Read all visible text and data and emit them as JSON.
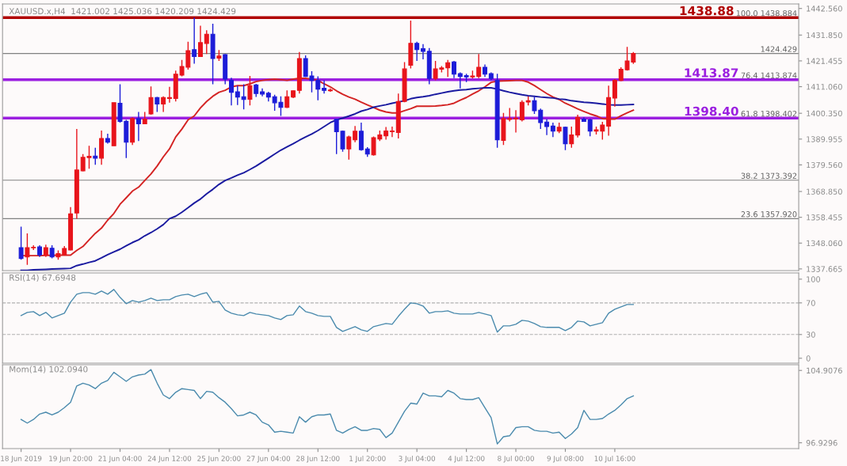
{
  "chart_data": [
    {
      "type": "candlestick",
      "title": "XAUUSD.x,H4  1421.002 1425.036 1420.209 1424.429",
      "categories": [
        null,
        null,
        null,
        null,
        null,
        null,
        null,
        null,
        null,
        null,
        null,
        null,
        null,
        null,
        null,
        null,
        null,
        null,
        null,
        null,
        null,
        null,
        null,
        null,
        null,
        null,
        null,
        null,
        null,
        null,
        null,
        null,
        null,
        null,
        null,
        null,
        null,
        null,
        null,
        null,
        null,
        null,
        null,
        null,
        null,
        null,
        null,
        null,
        null,
        null,
        null,
        null,
        null,
        null,
        null,
        null,
        null,
        null,
        null,
        null,
        null,
        null,
        null,
        null,
        null,
        null,
        null,
        null,
        null,
        null,
        null,
        null,
        null,
        null,
        null,
        null,
        null,
        null,
        null,
        null,
        null,
        null,
        null,
        null,
        null,
        null,
        null,
        null,
        null,
        null,
        null,
        null,
        null,
        null,
        null,
        null,
        null,
        null,
        null,
        null
      ],
      "ohlc": [
        [
          1346.2,
          1354.7,
          1341.4,
          1341.9
        ],
        [
          1342.5,
          1352.0,
          1339.3,
          1346.2
        ],
        [
          1346.2,
          1347.2,
          1345.3,
          1346.4
        ],
        [
          1346.5,
          1347.2,
          1342.5,
          1343.3
        ],
        [
          1343.2,
          1347.4,
          1342.5,
          1346.2
        ],
        [
          1346.0,
          1347.2,
          1341.9,
          1342.5
        ],
        [
          1342.5,
          1345.1,
          1341.4,
          1343.8
        ],
        [
          1343.5,
          1346.9,
          1343.2,
          1345.9
        ],
        [
          1345.3,
          1362.6,
          1345.1,
          1359.8
        ],
        [
          1360.2,
          1394.0,
          1357.9,
          1377.5
        ],
        [
          1377.2,
          1383.9,
          1377.0,
          1382.6
        ],
        [
          1382.5,
          1387.3,
          1378.0,
          1383.0
        ],
        [
          1383.1,
          1386.5,
          1379.6,
          1382.3
        ],
        [
          1382.3,
          1393.4,
          1379.6,
          1390.2
        ],
        [
          1390.2,
          1392.1,
          1388.1,
          1388.7
        ],
        [
          1387.3,
          1404.6,
          1387.3,
          1404.6
        ],
        [
          1404.4,
          1412.0,
          1396.6,
          1397.1
        ],
        [
          1397.1,
          1397.7,
          1382.3,
          1388.7
        ],
        [
          1388.7,
          1398.7,
          1387.6,
          1398.2
        ],
        [
          1398.2,
          1400.9,
          1389.2,
          1396.1
        ],
        [
          1396.1,
          1400.9,
          1396.1,
          1398.0
        ],
        [
          1400.1,
          1411.2,
          1399.8,
          1406.7
        ],
        [
          1406.7,
          1406.9,
          1400.9,
          1404.1
        ],
        [
          1404.1,
          1407.2,
          1400.9,
          1406.7
        ],
        [
          1406.3,
          1411.0,
          1404.6,
          1406.7
        ],
        [
          1406.3,
          1417.5,
          1405.1,
          1416.1
        ],
        [
          1415.7,
          1421.8,
          1415.2,
          1419.2
        ],
        [
          1418.9,
          1429.2,
          1417.9,
          1425.6
        ],
        [
          1426.0,
          1438.9,
          1420.3,
          1423.2
        ],
        [
          1423.2,
          1435.6,
          1423.2,
          1428.8
        ],
        [
          1428.5,
          1433.8,
          1424.2,
          1432.2
        ],
        [
          1432.2,
          1436.4,
          1412.0,
          1422.4
        ],
        [
          1422.6,
          1425.8,
          1421.4,
          1423.4
        ],
        [
          1424.0,
          1424.2,
          1412.0,
          1414.1
        ],
        [
          1413.6,
          1414.7,
          1403.5,
          1408.8
        ],
        [
          1409.0,
          1411.5,
          1403.7,
          1406.9
        ],
        [
          1407.0,
          1412.0,
          1401.9,
          1405.9
        ],
        [
          1406.0,
          1415.4,
          1403.5,
          1411.5
        ],
        [
          1411.8,
          1412.2,
          1406.9,
          1408.3
        ],
        [
          1409.0,
          1410.4,
          1407.2,
          1408.1
        ],
        [
          1408.4,
          1409.0,
          1405.1,
          1406.9
        ],
        [
          1407.0,
          1407.8,
          1401.4,
          1404.6
        ],
        [
          1404.8,
          1407.2,
          1399.3,
          1402.7
        ],
        [
          1402.7,
          1409.6,
          1402.5,
          1407.0
        ],
        [
          1406.9,
          1409.6,
          1406.5,
          1409.4
        ],
        [
          1409.6,
          1425.0,
          1408.3,
          1422.4
        ],
        [
          1422.4,
          1423.7,
          1415.0,
          1415.2
        ],
        [
          1415.4,
          1417.3,
          1408.8,
          1413.6
        ],
        [
          1413.6,
          1415.2,
          1405.6,
          1410.1
        ],
        [
          1410.4,
          1413.6,
          1408.3,
          1409.6
        ],
        [
          1409.4,
          1410.4,
          1409.0,
          1409.7
        ],
        [
          1398.0,
          1398.2,
          1383.9,
          1392.9
        ],
        [
          1393.1,
          1393.4,
          1384.9,
          1386.0
        ],
        [
          1386.0,
          1391.3,
          1381.7,
          1390.8
        ],
        [
          1389.7,
          1395.2,
          1388.7,
          1393.1
        ],
        [
          1393.1,
          1396.6,
          1385.3,
          1385.7
        ],
        [
          1386.0,
          1386.7,
          1382.8,
          1383.9
        ],
        [
          1383.6,
          1391.0,
          1383.3,
          1390.5
        ],
        [
          1390.0,
          1393.4,
          1389.2,
          1391.6
        ],
        [
          1391.3,
          1394.8,
          1389.7,
          1393.2
        ],
        [
          1392.9,
          1395.0,
          1390.8,
          1393.2
        ],
        [
          1392.6,
          1408.3,
          1390.2,
          1405.1
        ],
        [
          1405.1,
          1421.0,
          1404.8,
          1418.2
        ],
        [
          1419.7,
          1437.7,
          1418.4,
          1428.5
        ],
        [
          1428.5,
          1429.2,
          1421.4,
          1426.0
        ],
        [
          1426.4,
          1428.2,
          1422.1,
          1425.3
        ],
        [
          1425.3,
          1426.6,
          1412.0,
          1414.4
        ],
        [
          1414.4,
          1421.4,
          1413.6,
          1418.2
        ],
        [
          1418.1,
          1419.4,
          1416.8,
          1418.6
        ],
        [
          1418.7,
          1421.8,
          1415.0,
          1420.7
        ],
        [
          1421.0,
          1421.4,
          1414.5,
          1416.1
        ],
        [
          1416.3,
          1416.8,
          1410.4,
          1415.2
        ],
        [
          1415.5,
          1416.3,
          1412.9,
          1415.0
        ],
        [
          1415.0,
          1417.5,
          1414.4,
          1415.4
        ],
        [
          1415.2,
          1424.2,
          1414.5,
          1418.9
        ],
        [
          1418.9,
          1420.0,
          1415.0,
          1416.1
        ],
        [
          1416.3,
          1416.8,
          1413.6,
          1414.4
        ],
        [
          1413.6,
          1416.3,
          1386.5,
          1389.7
        ],
        [
          1389.4,
          1400.5,
          1387.6,
          1398.2
        ],
        [
          1397.9,
          1402.5,
          1397.1,
          1398.2
        ],
        [
          1398.0,
          1401.6,
          1392.6,
          1398.4
        ],
        [
          1397.7,
          1405.6,
          1397.1,
          1404.8
        ],
        [
          1404.9,
          1407.2,
          1403.5,
          1405.4
        ],
        [
          1405.4,
          1406.9,
          1400.1,
          1401.4
        ],
        [
          1401.6,
          1402.2,
          1394.0,
          1396.6
        ],
        [
          1396.8,
          1398.0,
          1391.6,
          1395.0
        ],
        [
          1395.2,
          1396.6,
          1390.8,
          1393.2
        ],
        [
          1393.2,
          1396.6,
          1392.4,
          1394.7
        ],
        [
          1394.7,
          1395.0,
          1385.5,
          1388.1
        ],
        [
          1388.1,
          1395.0,
          1386.5,
          1391.6
        ],
        [
          1391.6,
          1399.8,
          1390.6,
          1398.7
        ],
        [
          1398.0,
          1398.7,
          1396.9,
          1397.1
        ],
        [
          1397.7,
          1398.2,
          1391.1,
          1393.2
        ],
        [
          1393.2,
          1395.0,
          1391.8,
          1393.7
        ],
        [
          1393.2,
          1396.9,
          1389.7,
          1395.6
        ],
        [
          1395.2,
          1411.5,
          1391.3,
          1406.7
        ],
        [
          1406.5,
          1414.1,
          1403.0,
          1413.6
        ],
        [
          1413.6,
          1418.9,
          1413.3,
          1418.1
        ],
        [
          1417.9,
          1427.1,
          1417.5,
          1421.4
        ],
        [
          1421.002,
          1425.036,
          1420.209,
          1424.429
        ]
      ],
      "colors": [
        "#1c1cd8",
        "#e8141b",
        "#e8141b",
        "#1c1cd8",
        "#e8141b",
        "#1c1cd8",
        "#e8141b",
        "#e8141b",
        "#e8141b",
        "#e8141b",
        "#e8141b",
        "#e8141b",
        "#1c1cd8",
        "#e8141b",
        "#1c1cd8",
        "#e8141b",
        "#1c1cd8",
        "#1c1cd8",
        "#e8141b",
        "#1c1cd8",
        "#e8141b",
        "#e8141b",
        "#1c1cd8",
        "#e8141b",
        "#e8141b",
        "#e8141b",
        "#e8141b",
        "#e8141b",
        "#1c1cd8",
        "#e8141b",
        "#e8141b",
        "#1c1cd8",
        "#e8141b",
        "#1c1cd8",
        "#1c1cd8",
        "#1c1cd8",
        "#1c1cd8",
        "#e8141b",
        "#1c1cd8",
        "#1c1cd8",
        "#1c1cd8",
        "#1c1cd8",
        "#1c1cd8",
        "#e8141b",
        "#e8141b",
        "#e8141b",
        "#1c1cd8",
        "#1c1cd8",
        "#1c1cd8",
        "#1c1cd8",
        "#e8141b",
        "#1c1cd8",
        "#1c1cd8",
        "#e8141b",
        "#e8141b",
        "#1c1cd8",
        "#1c1cd8",
        "#e8141b",
        "#e8141b",
        "#e8141b",
        "#e8141b",
        "#e8141b",
        "#e8141b",
        "#e8141b",
        "#1c1cd8",
        "#1c1cd8",
        "#1c1cd8",
        "#e8141b",
        "#e8141b",
        "#e8141b",
        "#1c1cd8",
        "#1c1cd8",
        "#1c1cd8",
        "#e8141b",
        "#e8141b",
        "#1c1cd8",
        "#1c1cd8",
        "#1c1cd8",
        "#e8141b",
        "#e8141b",
        "#e8141b",
        "#e8141b",
        "#e8141b",
        "#1c1cd8",
        "#1c1cd8",
        "#1c1cd8",
        "#1c1cd8",
        "#e8141b",
        "#1c1cd8",
        "#e8141b",
        "#e8141b",
        "#1c1cd8",
        "#1c1cd8",
        "#e8141b",
        "#e8141b",
        "#e8141b",
        "#e8141b",
        "#e8141b",
        "#e8141b",
        "#e8141b"
      ],
      "series": [
        {
          "type": "line",
          "color": "#d42424",
          "values": [
            1343.0,
            1343.0,
            1343.0,
            1343.0,
            1343.1,
            1343.1,
            1343.2,
            1343.2,
            1343.2,
            1345.1,
            1346.7,
            1349.4,
            1352.0,
            1354.1,
            1357.3,
            1360.0,
            1363.7,
            1366.3,
            1369.0,
            1370.6,
            1373.3,
            1375.9,
            1379.1,
            1382.8,
            1386.0,
            1390.8,
            1394.0,
            1397.7,
            1399.3,
            1402.5,
            1405.1,
            1407.2,
            1408.8,
            1409.6,
            1411.0,
            1411.5,
            1411.5,
            1412.2,
            1413.1,
            1413.6,
            1413.9,
            1414.1,
            1413.9,
            1413.6,
            1414.1,
            1414.4,
            1414.4,
            1414.1,
            1413.6,
            1412.2,
            1411.0,
            1409.4,
            1408.0,
            1406.9,
            1406.0,
            1404.8,
            1403.7,
            1402.7,
            1401.6,
            1400.9,
            1400.5,
            1400.5,
            1401.4,
            1402.2,
            1403.2,
            1403.2,
            1403.2,
            1403.3,
            1403.5,
            1403.8,
            1404.4,
            1405.6,
            1406.7,
            1408.1,
            1409.4,
            1411.0,
            1412.8,
            1413.3,
            1413.4,
            1413.5,
            1413.6,
            1413.6,
            1412.9,
            1411.5,
            1409.9,
            1408.3,
            1406.9,
            1405.9,
            1404.4,
            1403.3,
            1402.1,
            1401.1,
            1400.1,
            1399.3,
            1398.2,
            1398.0,
            1398.0,
            1399.3,
            1400.5,
            1401.6
          ]
        },
        {
          "type": "line",
          "color": "#1a1aa0",
          "values": [
            1337.1,
            1337.1,
            1337.3,
            1337.4,
            1337.5,
            1337.6,
            1337.7,
            1337.8,
            1337.9,
            1339.0,
            1339.6,
            1340.3,
            1340.9,
            1342.1,
            1343.4,
            1344.5,
            1345.6,
            1347.0,
            1348.3,
            1349.4,
            1351.0,
            1352.3,
            1353.8,
            1355.5,
            1357.9,
            1358.9,
            1360.5,
            1362.3,
            1364.2,
            1365.8,
            1367.9,
            1369.7,
            1371.7,
            1373.3,
            1374.3,
            1375.4,
            1376.4,
            1377.7,
            1379.1,
            1380.7,
            1382.3,
            1383.9,
            1385.5,
            1386.8,
            1388.1,
            1389.5,
            1390.8,
            1392.0,
            1393.4,
            1395.0,
            1396.6,
            1397.7,
            1398.4,
            1399.2,
            1400.1,
            1401.2,
            1401.9,
            1402.8,
            1403.3,
            1403.8,
            1404.4,
            1404.9,
            1405.4,
            1406.2,
            1406.7,
            1407.0,
            1407.4,
            1408.0,
            1408.5,
            1409.0,
            1409.4,
            1409.7,
            1409.9,
            1410.2,
            1410.4,
            1410.6,
            1410.6,
            1410.1,
            1409.4,
            1408.8,
            1408.3,
            1407.8,
            1407.4,
            1407.2,
            1406.9,
            1406.7,
            1406.5,
            1406.1,
            1405.9,
            1405.4,
            1405.1,
            1404.8,
            1404.6,
            1404.4,
            1404.1,
            1403.8,
            1403.7,
            1403.7,
            1403.8,
            1403.9
          ]
        }
      ],
      "ylim": [
        1337.0,
        1444.4
      ],
      "yticks": [
        {
          "value": 1442.56,
          "label": "1442.560"
        },
        {
          "value": 1431.85,
          "label": "1431.850"
        },
        1421.455,
        {
          "value": 1411.06,
          "label": "1411.060"
        },
        {
          "value": 1400.35,
          "label": "1400.350"
        },
        1389.955,
        {
          "value": 1379.56,
          "label": "1379.560"
        },
        {
          "value": 1368.85,
          "label": "1368.850"
        },
        1358.455,
        {
          "value": 1348.06,
          "label": "1348.060"
        },
        1337.665
      ],
      "ref_lines": [
        {
          "axis": "y",
          "value": 1438.88,
          "label": "1438.88",
          "color": "#b00000"
        },
        {
          "axis": "y",
          "value": 1424.429,
          "label": "1424.429",
          "color": "#808080"
        },
        {
          "axis": "y",
          "value": 1413.87,
          "label": "1413.87",
          "color": "#9b1fe0"
        },
        {
          "axis": "y",
          "value": 1398.4,
          "label": "1398.40",
          "color": "#9b1fe0"
        },
        {
          "axis": "y",
          "value": 1373.392,
          "color": "#808080"
        },
        {
          "axis": "y",
          "value": 1357.92,
          "color": "#808080"
        }
      ],
      "annotations": [
        {
          "text": "100.0 1438.884",
          "y": 1438.884
        },
        {
          "text": "76.4 1413.874",
          "y": 1413.874
        },
        {
          "text": "61.8 1398.402",
          "y": 1398.402
        },
        {
          "text": "38.2 1373.392",
          "y": 1373.392
        },
        {
          "text": "23.6 1357.920",
          "y": 1357.92
        }
      ],
      "tick_labels": "y"
    },
    {
      "type": "line",
      "title": "RSI(14) 67.6948",
      "categories": [
        null,
        null,
        null,
        null,
        null,
        null,
        null,
        null,
        null,
        null,
        null,
        null,
        null,
        null,
        null,
        null,
        null,
        null,
        null,
        null,
        null,
        null,
        null,
        null,
        null,
        null,
        null,
        null,
        null,
        null,
        null,
        null,
        null,
        null,
        null,
        null,
        null,
        null,
        null,
        null,
        null,
        null,
        null,
        null,
        null,
        null,
        null,
        null,
        null,
        null,
        null,
        null,
        null,
        null,
        null,
        null,
        null,
        null,
        null,
        null,
        null,
        null,
        null,
        null,
        null,
        null,
        null,
        null,
        null,
        null,
        null,
        null,
        null,
        null,
        null,
        null,
        null,
        null,
        null,
        null,
        null,
        null,
        null,
        null,
        null,
        null,
        null,
        null,
        null,
        null,
        null,
        null,
        null,
        null,
        null,
        null,
        null,
        null,
        null,
        null
      ],
      "series": [
        {
          "color": "#4a8aad",
          "values": [
            54,
            58,
            59,
            54,
            58,
            51,
            54,
            57,
            71,
            81,
            83,
            83,
            81,
            85,
            81,
            87,
            77,
            69,
            73,
            71,
            73,
            76,
            73,
            74,
            74,
            78,
            80,
            81,
            78,
            81,
            83,
            71,
            72,
            61,
            57,
            55,
            54,
            58,
            56,
            55,
            54,
            51,
            49,
            54,
            55,
            66,
            59,
            57,
            54,
            53,
            53,
            39,
            34,
            37,
            40,
            36,
            34,
            40,
            42,
            44,
            43,
            53,
            62,
            70,
            69,
            66,
            57,
            59,
            59,
            60,
            57,
            56,
            56,
            56,
            58,
            56,
            54,
            33,
            41,
            41,
            43,
            48,
            47,
            44,
            40,
            39,
            39,
            39,
            35,
            39,
            47,
            46,
            41,
            43,
            45,
            57,
            62,
            65,
            68,
            68
          ]
        }
      ],
      "ylim": [
        -6.2,
        107.8
      ],
      "yticks": [
        0,
        30,
        70,
        100
      ],
      "ref_lines": [
        {
          "axis": "y",
          "value": 70,
          "color": "#b0b0b0",
          "line_style": "dashed"
        },
        {
          "axis": "y",
          "value": 30,
          "color": "#b0b0b0",
          "line_style": "dashed"
        }
      ],
      "tick_labels": "y"
    },
    {
      "type": "line",
      "title": "Mom(14) 102.0940",
      "categories": [
        "18 Jun 2019",
        null,
        null,
        null,
        null,
        null,
        null,
        null,
        "19 Jun 20:00",
        null,
        null,
        null,
        null,
        null,
        null,
        null,
        "21 Jun 04:00",
        null,
        null,
        null,
        null,
        null,
        null,
        null,
        "24 Jun 12:00",
        null,
        null,
        null,
        null,
        null,
        null,
        null,
        "25 Jun 20:00",
        null,
        null,
        null,
        null,
        null,
        null,
        null,
        "27 Jun 04:00",
        null,
        null,
        null,
        null,
        null,
        null,
        null,
        "28 Jun 12:00",
        null,
        null,
        null,
        null,
        null,
        null,
        null,
        "1 Jul 20:00",
        null,
        null,
        null,
        null,
        null,
        null,
        null,
        "3 Jul 04:00",
        null,
        null,
        null,
        null,
        null,
        null,
        null,
        "4 Jul 12:00",
        null,
        null,
        null,
        null,
        null,
        null,
        null,
        "8 Jul 00:00",
        null,
        null,
        null,
        null,
        null,
        null,
        null,
        "9 Jul 08:00",
        null,
        null,
        null,
        null,
        null,
        null,
        null,
        "10 Jul 16:00",
        null,
        null,
        null
      ],
      "series": [
        {
          "color": "#4a8aad",
          "values": [
            99.5,
            99.1,
            99.5,
            100.1,
            100.3,
            100.0,
            100.3,
            100.8,
            101.4,
            103.2,
            103.5,
            103.3,
            102.9,
            103.5,
            103.8,
            104.7,
            104.2,
            103.7,
            104.2,
            104.4,
            104.5,
            105.0,
            103.5,
            102.2,
            101.8,
            102.5,
            102.9,
            102.8,
            102.7,
            101.8,
            102.6,
            102.5,
            101.9,
            101.4,
            100.7,
            99.9,
            100.0,
            100.3,
            100.0,
            99.2,
            98.9,
            98.1,
            98.2,
            98.1,
            98.0,
            99.8,
            99.2,
            99.8,
            100.0,
            100.0,
            100.1,
            98.3,
            98.0,
            98.4,
            98.7,
            98.3,
            98.3,
            98.5,
            98.4,
            97.5,
            98.0,
            99.2,
            100.4,
            101.3,
            101.2,
            102.4,
            102.1,
            102.1,
            102.0,
            102.7,
            102.4,
            101.8,
            101.7,
            101.7,
            101.9,
            100.8,
            99.7,
            96.8,
            97.6,
            97.7,
            98.6,
            98.7,
            98.7,
            98.3,
            98.2,
            98.2,
            98.0,
            98.1,
            97.4,
            97.9,
            98.6,
            100.5,
            99.5,
            99.5,
            99.6,
            100.1,
            100.5,
            101.1,
            101.8,
            102.1
          ]
        }
      ],
      "ylim": [
        96.29,
        105.54
      ],
      "yticks": [
        96.9296,
        104.9076
      ]
    }
  ]
}
